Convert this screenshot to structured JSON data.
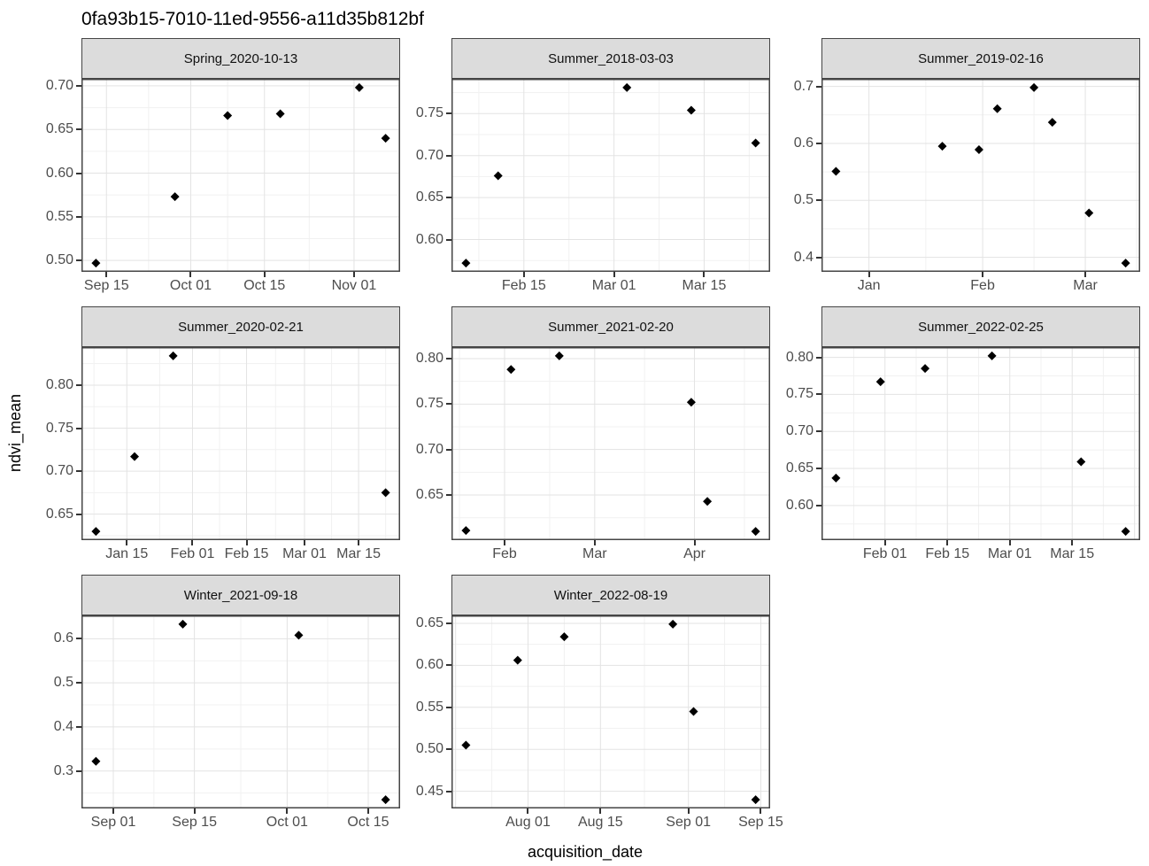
{
  "title": "0fa93b15-7010-11ed-9556-a11d35b812bf",
  "axes": {
    "x_title": "acquisition_date",
    "y_title": "ndvi_mean"
  },
  "style": {
    "strip_background": "#dcdcdc",
    "panel_border": "#454545",
    "grid_major": "#e3e3e3",
    "grid_minor": "#f1f1f1",
    "tick_label_color": "#4d4d4d",
    "point_color": "#000000",
    "point_shape": "diamond"
  },
  "chart_data": {
    "type": "scatter",
    "title": "0fa93b15-7010-11ed-9556-a11d35b812bf",
    "xlabel": "acquisition_date",
    "ylabel": "ndvi_mean",
    "legend": "none",
    "grid": true,
    "facets": [
      {
        "facet": "Spring_2020-10-13",
        "y_ticks": [
          "0.50",
          "0.55",
          "0.60",
          "0.65",
          "0.70"
        ],
        "x_ticks": [
          {
            "label": "Sep 15",
            "date": "2020-09-15"
          },
          {
            "label": "Oct 01",
            "date": "2020-10-01"
          },
          {
            "label": "Oct 15",
            "date": "2020-10-15"
          },
          {
            "label": "Nov 01",
            "date": "2020-11-01"
          }
        ],
        "points": [
          {
            "date": "2020-09-13",
            "value": 0.497
          },
          {
            "date": "2020-09-28",
            "value": 0.573
          },
          {
            "date": "2020-10-08",
            "value": 0.666
          },
          {
            "date": "2020-10-18",
            "value": 0.668
          },
          {
            "date": "2020-11-02",
            "value": 0.698
          },
          {
            "date": "2020-11-07",
            "value": 0.64
          }
        ]
      },
      {
        "facet": "Summer_2018-03-03",
        "y_ticks": [
          "0.60",
          "0.65",
          "0.70",
          "0.75"
        ],
        "x_ticks": [
          {
            "label": "Feb 15",
            "date": "2018-02-15"
          },
          {
            "label": "Mar 01",
            "date": "2018-03-01"
          },
          {
            "label": "Mar 15",
            "date": "2018-03-15"
          }
        ],
        "points": [
          {
            "date": "2018-02-06",
            "value": 0.572
          },
          {
            "date": "2018-02-11",
            "value": 0.676
          },
          {
            "date": "2018-03-03",
            "value": 0.781
          },
          {
            "date": "2018-03-13",
            "value": 0.754
          },
          {
            "date": "2018-03-23",
            "value": 0.715
          }
        ]
      },
      {
        "facet": "Summer_2019-02-16",
        "y_ticks": [
          "0.4",
          "0.5",
          "0.6",
          "0.7"
        ],
        "x_ticks": [
          {
            "label": "Jan",
            "date": "2019-01-01"
          },
          {
            "label": "Feb",
            "date": "2019-02-01"
          },
          {
            "label": "Mar",
            "date": "2019-03-01"
          }
        ],
        "points": [
          {
            "date": "2018-12-23",
            "value": 0.551
          },
          {
            "date": "2019-01-21",
            "value": 0.595
          },
          {
            "date": "2019-01-31",
            "value": 0.589
          },
          {
            "date": "2019-02-05",
            "value": 0.661
          },
          {
            "date": "2019-02-15",
            "value": 0.698
          },
          {
            "date": "2019-02-20",
            "value": 0.637
          },
          {
            "date": "2019-03-02",
            "value": 0.478
          },
          {
            "date": "2019-03-12",
            "value": 0.39
          }
        ]
      },
      {
        "facet": "Summer_2020-02-21",
        "y_ticks": [
          "0.65",
          "0.70",
          "0.75",
          "0.80"
        ],
        "x_ticks": [
          {
            "label": "Jan 15",
            "date": "2020-01-15"
          },
          {
            "label": "Feb 01",
            "date": "2020-02-01"
          },
          {
            "label": "Feb 15",
            "date": "2020-02-15"
          },
          {
            "label": "Mar 01",
            "date": "2020-03-01"
          },
          {
            "label": "Mar 15",
            "date": "2020-03-15"
          }
        ],
        "points": [
          {
            "date": "2020-01-07",
            "value": 0.63
          },
          {
            "date": "2020-01-17",
            "value": 0.717
          },
          {
            "date": "2020-01-27",
            "value": 0.834
          },
          {
            "date": "2020-03-22",
            "value": 0.675
          }
        ]
      },
      {
        "facet": "Summer_2021-02-20",
        "y_ticks": [
          "0.60",
          "0.65",
          "0.70",
          "0.75",
          "0.80"
        ],
        "x_ticks": [
          {
            "label": "Feb",
            "date": "2021-02-01"
          },
          {
            "label": "Mar",
            "date": "2021-03-01"
          },
          {
            "label": "Apr",
            "date": "2021-04-01"
          }
        ],
        "points": [
          {
            "date": "2021-01-20",
            "value": 0.611
          },
          {
            "date": "2021-02-03",
            "value": 0.788
          },
          {
            "date": "2021-02-18",
            "value": 0.803
          },
          {
            "date": "2021-03-31",
            "value": 0.752
          },
          {
            "date": "2021-04-05",
            "value": 0.643
          },
          {
            "date": "2021-04-20",
            "value": 0.61
          }
        ]
      },
      {
        "facet": "Summer_2022-02-25",
        "y_ticks": [
          "0.60",
          "0.65",
          "0.70",
          "0.75",
          "0.80"
        ],
        "x_ticks": [
          {
            "label": "Feb 01",
            "date": "2022-02-01"
          },
          {
            "label": "Feb 15",
            "date": "2022-02-15"
          },
          {
            "label": "Mar 01",
            "date": "2022-03-01"
          },
          {
            "label": "Mar 15",
            "date": "2022-03-15"
          }
        ],
        "points": [
          {
            "date": "2022-01-21",
            "value": 0.637
          },
          {
            "date": "2022-01-31",
            "value": 0.767
          },
          {
            "date": "2022-02-10",
            "value": 0.785
          },
          {
            "date": "2022-02-25",
            "value": 0.802
          },
          {
            "date": "2022-03-17",
            "value": 0.659
          },
          {
            "date": "2022-03-27",
            "value": 0.565
          }
        ]
      },
      {
        "facet": "Winter_2021-09-18",
        "y_ticks": [
          "0.3",
          "0.4",
          "0.5",
          "0.6"
        ],
        "x_ticks": [
          {
            "label": "Sep 01",
            "date": "2021-09-01"
          },
          {
            "label": "Sep 15",
            "date": "2021-09-15"
          },
          {
            "label": "Oct 01",
            "date": "2021-10-01"
          },
          {
            "label": "Oct 15",
            "date": "2021-10-15"
          }
        ],
        "points": [
          {
            "date": "2021-08-29",
            "value": 0.322
          },
          {
            "date": "2021-09-13",
            "value": 0.633
          },
          {
            "date": "2021-10-03",
            "value": 0.608
          },
          {
            "date": "2021-10-18",
            "value": 0.235
          }
        ]
      },
      {
        "facet": "Winter_2022-08-19",
        "y_ticks": [
          "0.45",
          "0.50",
          "0.55",
          "0.60",
          "0.65"
        ],
        "x_ticks": [
          {
            "label": "Aug 01",
            "date": "2022-08-01"
          },
          {
            "label": "Aug 15",
            "date": "2022-08-15"
          },
          {
            "label": "Sep 01",
            "date": "2022-09-01"
          },
          {
            "label": "Sep 15",
            "date": "2022-09-15"
          }
        ],
        "points": [
          {
            "date": "2022-07-20",
            "value": 0.505
          },
          {
            "date": "2022-07-30",
            "value": 0.606
          },
          {
            "date": "2022-08-08",
            "value": 0.634
          },
          {
            "date": "2022-08-29",
            "value": 0.649
          },
          {
            "date": "2022-09-02",
            "value": 0.545
          },
          {
            "date": "2022-09-14",
            "value": 0.44
          }
        ]
      }
    ]
  }
}
